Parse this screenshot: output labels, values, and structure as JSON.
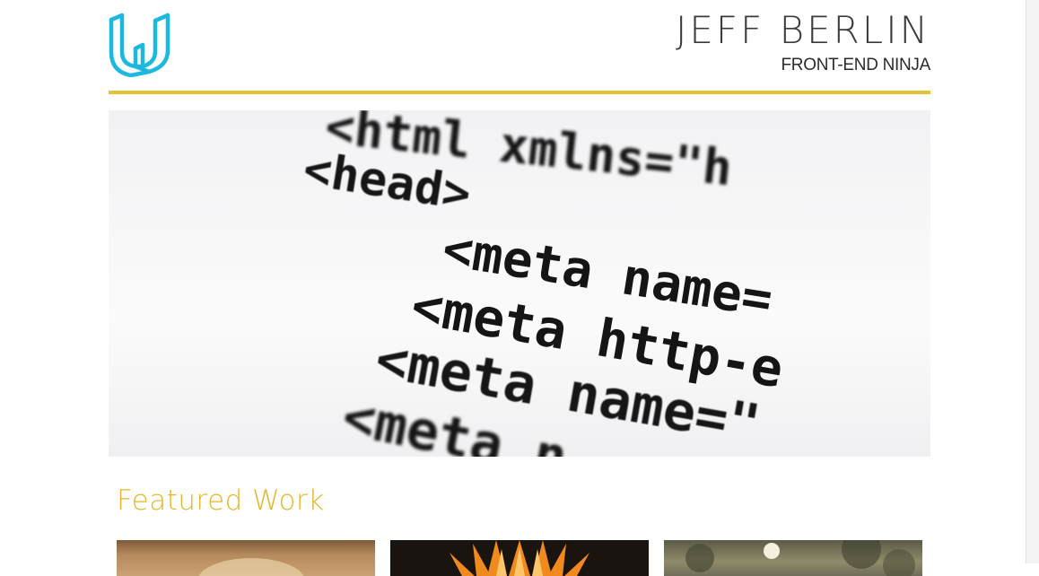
{
  "header": {
    "logo_icon": "udacity-u-logo-icon",
    "name": "JEFF BERLIN",
    "role": "FRONT-END NINJA",
    "accent_color": "#e6c42f",
    "logo_color": "#1cb8e0"
  },
  "hero": {
    "image_icon": "html-code-photo",
    "code_lines": [
      "<html xmlns=\"h",
      "<head>",
      "<meta name=",
      "<meta http-e",
      "<meta name=\"",
      "<meta n"
    ]
  },
  "featured": {
    "title": "Featured Work",
    "title_color": "#e3b729",
    "thumbnails": [
      {
        "icon": "warm-photo-thumbnail"
      },
      {
        "icon": "orange-star-thumbnail"
      },
      {
        "icon": "foliage-photo-thumbnail"
      }
    ]
  }
}
